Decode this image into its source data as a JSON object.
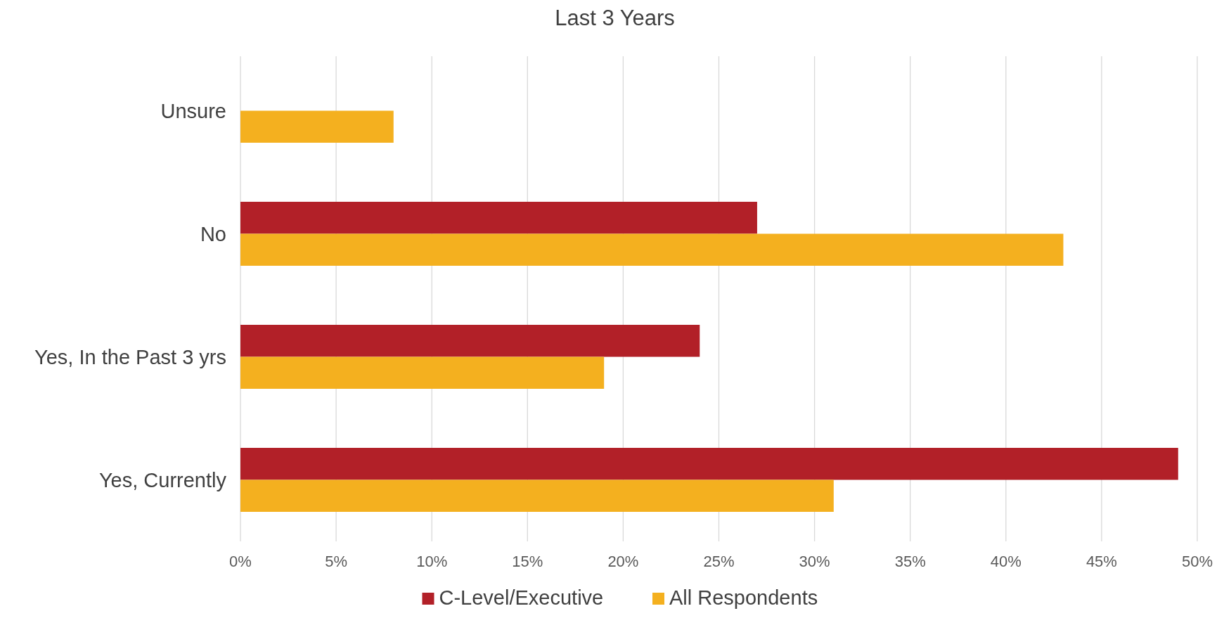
{
  "chart_data": {
    "type": "bar",
    "orientation": "horizontal",
    "title": "Last 3 Years",
    "categories": [
      "Unsure",
      "No",
      "Yes, In the Past 3 yrs",
      "Yes, Currently"
    ],
    "series": [
      {
        "name": "C-Level/Executive",
        "color": "#b22028",
        "values": [
          null,
          27,
          24,
          49
        ]
      },
      {
        "name": "All Respondents",
        "color": "#f4b01f",
        "values": [
          8,
          43,
          19,
          31
        ]
      }
    ],
    "xlim": [
      0,
      50
    ],
    "xticks": [
      {
        "value": 0,
        "label": "0%"
      },
      {
        "value": 5,
        "label": "5%"
      },
      {
        "value": 10,
        "label": "10%"
      },
      {
        "value": 15,
        "label": "15%"
      },
      {
        "value": 20,
        "label": "20%"
      },
      {
        "value": 25,
        "label": "25%"
      },
      {
        "value": 30,
        "label": "30%"
      },
      {
        "value": 35,
        "label": "35%"
      },
      {
        "value": 40,
        "label": "40%"
      },
      {
        "value": 45,
        "label": "45%"
      },
      {
        "value": 50,
        "label": "50%"
      }
    ],
    "grid": "x",
    "legend": "bottom"
  }
}
